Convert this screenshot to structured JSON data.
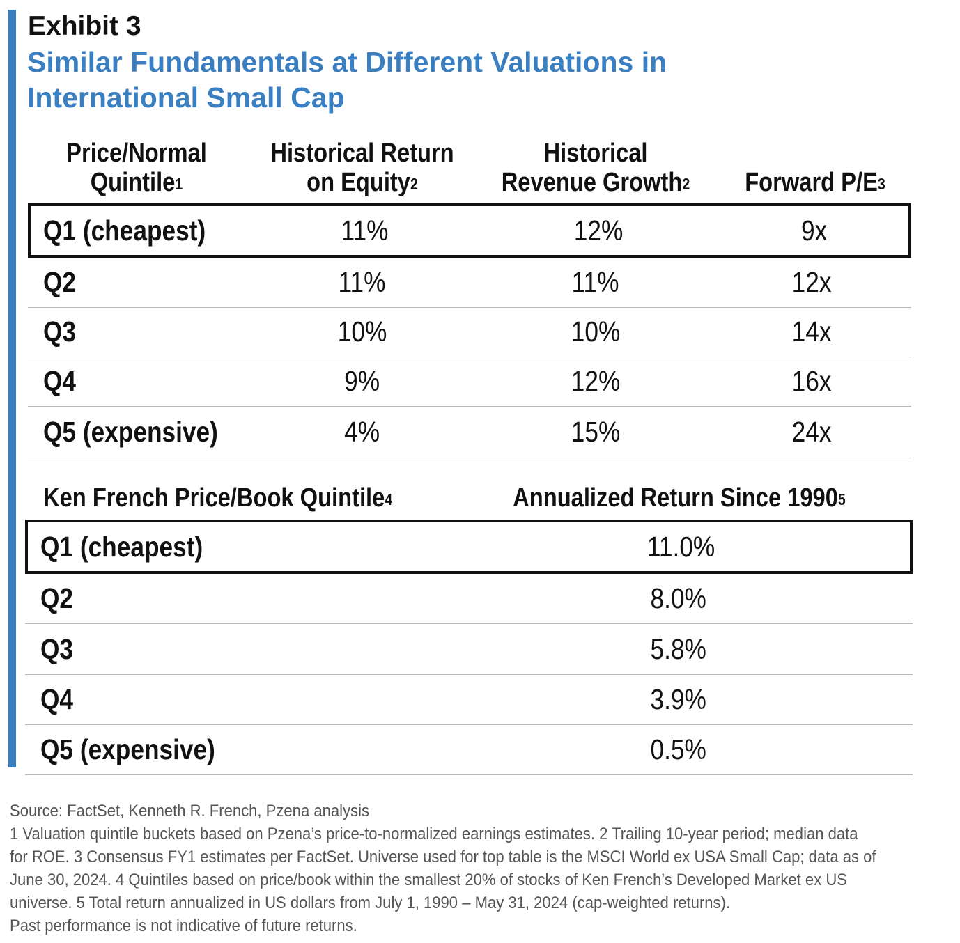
{
  "exhibit": "Exhibit 3",
  "title_line1": "Similar Fundamentals at Different Valuations in",
  "title_line2": "International Small Cap",
  "table1": {
    "headers": [
      {
        "line1": "Price/Normal",
        "line2": "Quintile",
        "sup": "1"
      },
      {
        "line1": "Historical Return",
        "line2": "on Equity",
        "sup": "2"
      },
      {
        "line1": "Historical",
        "line2": "Revenue Growth",
        "sup": "2"
      },
      {
        "line1": "",
        "line2": "Forward P/E",
        "sup": "3"
      }
    ],
    "rows": [
      {
        "label": "Q1 (cheapest)",
        "roe": "11%",
        "growth": "12%",
        "pe": "9x"
      },
      {
        "label": "Q2",
        "roe": "11%",
        "growth": "11%",
        "pe": "12x"
      },
      {
        "label": "Q3",
        "roe": "10%",
        "growth": "10%",
        "pe": "14x"
      },
      {
        "label": "Q4",
        "roe": "9%",
        "growth": "12%",
        "pe": "16x"
      },
      {
        "label": "Q5 (expensive)",
        "roe": "4%",
        "growth": "15%",
        "pe": "24x"
      }
    ]
  },
  "table2": {
    "headers": [
      {
        "text": "Ken French Price/Book Quintile",
        "sup": "4"
      },
      {
        "text": "Annualized Return Since 1990",
        "sup": "5"
      }
    ],
    "rows": [
      {
        "label": "Q1 (cheapest)",
        "value": "11.0%"
      },
      {
        "label": "Q2",
        "value": "8.0%"
      },
      {
        "label": "Q3",
        "value": "5.8%"
      },
      {
        "label": "Q4",
        "value": "3.9%"
      },
      {
        "label": "Q5 (expensive)",
        "value": "0.5%"
      }
    ]
  },
  "footer": [
    "Source: FactSet, Kenneth R. French, Pzena analysis",
    "1 Valuation quintile buckets based on Pzena’s price-to-normalized earnings estimates.  2 Trailing 10-year period; median data",
    "for ROE.  3 Consensus FY1 estimates per FactSet. Universe used for top table is the MSCI World ex USA Small Cap; data as of",
    "June 30, 2024.  4 Quintiles based on price/book within the smallest 20% of stocks of Ken French’s Developed Market ex US",
    "universe.  5 Total return annualized in US dollars from July 1, 1990 – May 31, 2024 (cap-weighted returns).",
    "Past performance is not indicative of future returns."
  ],
  "colors": {
    "accent": "#3a7fc1",
    "text": "#111111",
    "footer": "#555555",
    "rule": "#b8b8b8"
  }
}
